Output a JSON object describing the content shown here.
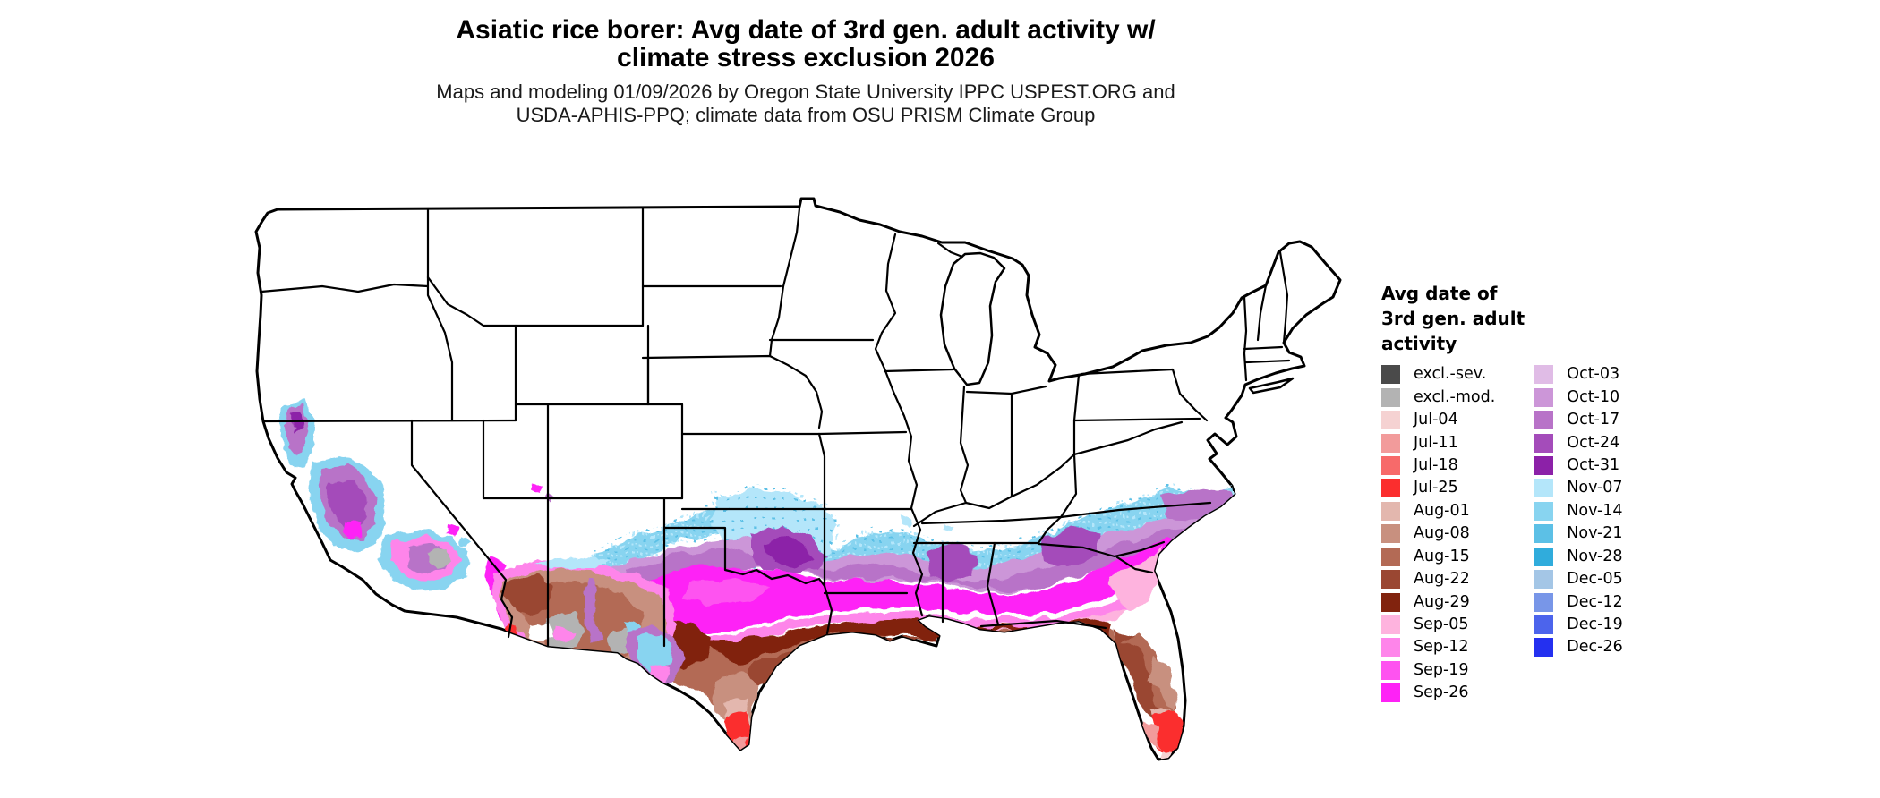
{
  "title": {
    "line1": "Asiatic rice borer: Avg date of 3rd gen. adult activity w/",
    "line2": "climate stress exclusion 2026"
  },
  "subtitle": {
    "line1": "Maps and modeling 01/09/2026 by Oregon State University IPPC USPEST.ORG and",
    "line2": "USDA-APHIS-PPQ; climate data from OSU PRISM Climate Group"
  },
  "legend": {
    "title_lines": [
      "Avg date of",
      "3rd gen. adult",
      "activity"
    ],
    "column1": [
      {
        "key": "exclsev",
        "label": "excl.-sev.",
        "color": "#4a4a4a"
      },
      {
        "key": "exclmod",
        "label": "excl.-mod.",
        "color": "#b3b3b3"
      },
      {
        "key": "jul04",
        "label": "Jul-04",
        "color": "#f5d2d2"
      },
      {
        "key": "jul11",
        "label": "Jul-11",
        "color": "#f29b9b"
      },
      {
        "key": "jul18",
        "label": "Jul-18",
        "color": "#f76a6a"
      },
      {
        "key": "jul25",
        "label": "Jul-25",
        "color": "#fb2e2e"
      },
      {
        "key": "aug01",
        "label": "Aug-01",
        "color": "#e3b7ae"
      },
      {
        "key": "aug08",
        "label": "Aug-08",
        "color": "#c8907f"
      },
      {
        "key": "aug15",
        "label": "Aug-15",
        "color": "#b36a55"
      },
      {
        "key": "aug22",
        "label": "Aug-22",
        "color": "#9a4732"
      },
      {
        "key": "aug29",
        "label": "Aug-29",
        "color": "#81230e"
      },
      {
        "key": "sep05",
        "label": "Sep-05",
        "color": "#feb3de"
      },
      {
        "key": "sep12",
        "label": "Sep-12",
        "color": "#fe85ea"
      },
      {
        "key": "sep19",
        "label": "Sep-19",
        "color": "#fe53f0"
      },
      {
        "key": "sep26",
        "label": "Sep-26",
        "color": "#fe22f6"
      }
    ],
    "column2": [
      {
        "key": "oct03",
        "label": "Oct-03",
        "color": "#e0bce6"
      },
      {
        "key": "oct10",
        "label": "Oct-10",
        "color": "#cc96d8"
      },
      {
        "key": "oct17",
        "label": "Oct-17",
        "color": "#b873c8"
      },
      {
        "key": "oct24",
        "label": "Oct-24",
        "color": "#a44cba"
      },
      {
        "key": "oct31",
        "label": "Oct-31",
        "color": "#8c21a8"
      },
      {
        "key": "nov07",
        "label": "Nov-07",
        "color": "#b4e6fa"
      },
      {
        "key": "nov14",
        "label": "Nov-14",
        "color": "#88d4f0"
      },
      {
        "key": "nov21",
        "label": "Nov-21",
        "color": "#5cc0e6"
      },
      {
        "key": "nov28",
        "label": "Nov-28",
        "color": "#30acdc"
      },
      {
        "key": "dec05",
        "label": "Dec-05",
        "color": "#a4c6e6"
      },
      {
        "key": "dec12",
        "label": "Dec-12",
        "color": "#7896e8"
      },
      {
        "key": "dec19",
        "label": "Dec-19",
        "color": "#4c64ec"
      },
      {
        "key": "dec26",
        "label": "Dec-26",
        "color": "#2430f0"
      }
    ]
  },
  "map": {
    "region": "Contiguous United States",
    "background": "#ffffff",
    "border_color": "#000000"
  }
}
